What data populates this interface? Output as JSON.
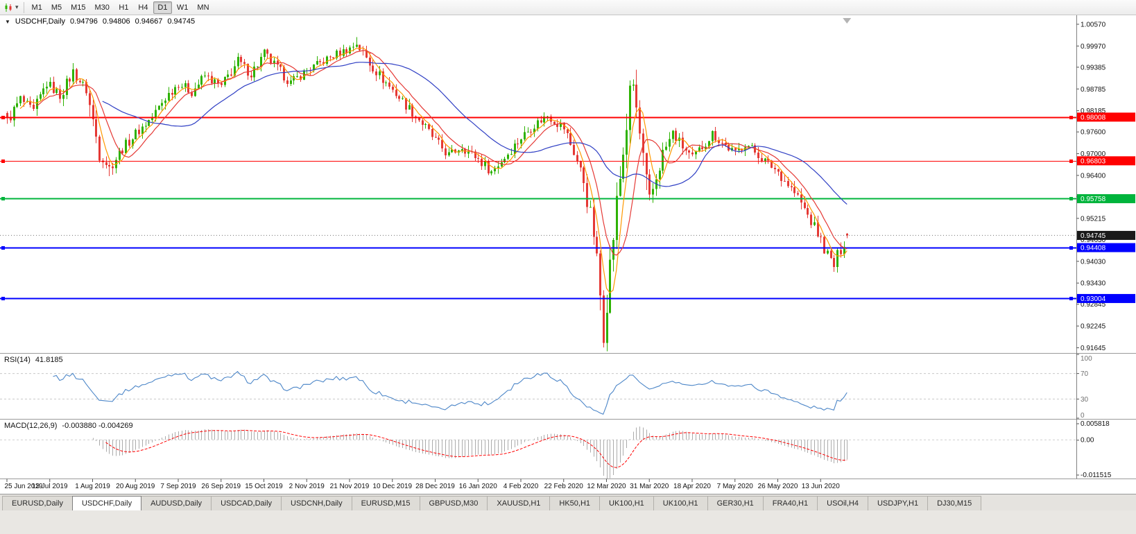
{
  "toolbar": {
    "dropdown_glyph": "▾",
    "timeframes": [
      {
        "label": "M1",
        "active": false
      },
      {
        "label": "M5",
        "active": false
      },
      {
        "label": "M15",
        "active": false
      },
      {
        "label": "M30",
        "active": false
      },
      {
        "label": "H1",
        "active": false
      },
      {
        "label": "H4",
        "active": false
      },
      {
        "label": "D1",
        "active": true
      },
      {
        "label": "W1",
        "active": false
      },
      {
        "label": "MN",
        "active": false
      }
    ]
  },
  "chart_header": {
    "collapse_arrow": "▼",
    "symbol": "USDCHF,Daily",
    "open": "0.94796",
    "high": "0.94806",
    "low": "0.94667",
    "close": "0.94745"
  },
  "chart_data": {
    "type": "candlestick",
    "symbol": "USDCHF",
    "period": "Daily",
    "bar_count": 256,
    "price_axis": {
      "ticks": [
        "1.00570",
        "0.99970",
        "0.99385",
        "0.98785",
        "0.98185",
        "0.97600",
        "0.97000",
        "0.96400",
        "0.95815",
        "0.95215",
        "0.94630",
        "0.94030",
        "0.93430",
        "0.92845",
        "0.92245",
        "0.91645"
      ],
      "top_price": 1.0078,
      "bottom_price": 0.9152
    },
    "x_axis_dates": [
      "25 Jun 2019",
      "13 Jul 2019",
      "1 Aug 2019",
      "20 Aug 2019",
      "7 Sep 2019",
      "26 Sep 2019",
      "15 Oct 2019",
      "2 Nov 2019",
      "21 Nov 2019",
      "10 Dec 2019",
      "28 Dec 2019",
      "16 Jan 2020",
      "4 Feb 2020",
      "22 Feb 2020",
      "12 Mar 2020",
      "31 Mar 2020",
      "18 Apr 2020",
      "7 May 2020",
      "26 May 2020",
      "13 Jun 2020"
    ],
    "date_bar_step": 13,
    "h_lines": [
      {
        "price": 0.98008,
        "label": "0.98008",
        "color": "#FF0000",
        "width": 2
      },
      {
        "price": 0.96803,
        "label": "0.96803",
        "color": "#FF0000",
        "width": 1
      },
      {
        "price": 0.95758,
        "label": "0.95758",
        "color": "#00B43C",
        "width": 2
      },
      {
        "price": 0.94408,
        "label": "0.94408",
        "color": "#0000FF",
        "width": 2
      },
      {
        "price": 0.93004,
        "label": "0.93004",
        "color": "#0000FF",
        "width": 2
      }
    ],
    "current_price": {
      "value": 0.94745,
      "label": "0.94745",
      "box_color": "#1a1a1a"
    },
    "colors": {
      "up": "#2DB200",
      "down": "#E53935",
      "bg": "#FFFFFF"
    },
    "moving_averages": [
      {
        "period": 5,
        "color": "#FF9800"
      },
      {
        "period": 10,
        "color": "#E53935"
      },
      {
        "period": 30,
        "color": "#2F3FC4"
      }
    ],
    "close_path": [
      [
        0,
        0.979
      ],
      [
        4,
        0.985
      ],
      [
        8,
        0.9815
      ],
      [
        12,
        0.9895
      ],
      [
        16,
        0.986
      ],
      [
        20,
        0.9925
      ],
      [
        24,
        0.9875
      ],
      [
        28,
        0.9705
      ],
      [
        31,
        0.966
      ],
      [
        35,
        0.9715
      ],
      [
        39,
        0.9755
      ],
      [
        44,
        0.98
      ],
      [
        48,
        0.9855
      ],
      [
        52,
        0.9895
      ],
      [
        56,
        0.987
      ],
      [
        60,
        0.9915
      ],
      [
        65,
        0.9885
      ],
      [
        70,
        0.9955
      ],
      [
        74,
        0.992
      ],
      [
        78,
        0.9975
      ],
      [
        82,
        0.9935
      ],
      [
        86,
        0.9895
      ],
      [
        91,
        0.993
      ],
      [
        96,
        0.9955
      ],
      [
        100,
        0.9975
      ],
      [
        104,
        0.999
      ],
      [
        106,
        1.0005
      ],
      [
        110,
        0.995
      ],
      [
        114,
        0.9905
      ],
      [
        117,
        0.9875
      ],
      [
        121,
        0.9835
      ],
      [
        125,
        0.9795
      ],
      [
        130,
        0.9735
      ],
      [
        134,
        0.9695
      ],
      [
        138,
        0.972
      ],
      [
        143,
        0.9685
      ],
      [
        147,
        0.965
      ],
      [
        151,
        0.969
      ],
      [
        156,
        0.9745
      ],
      [
        160,
        0.978
      ],
      [
        164,
        0.9805
      ],
      [
        169,
        0.977
      ],
      [
        172,
        0.9705
      ],
      [
        175,
        0.9625
      ],
      [
        178,
        0.948
      ],
      [
        180,
        0.931
      ],
      [
        181,
        0.9215
      ],
      [
        183,
        0.939
      ],
      [
        185,
        0.956
      ],
      [
        187,
        0.9705
      ],
      [
        189,
        0.9855
      ],
      [
        190,
        0.989
      ],
      [
        192,
        0.975
      ],
      [
        194,
        0.961
      ],
      [
        195,
        0.9565
      ],
      [
        197,
        0.9635
      ],
      [
        199,
        0.97
      ],
      [
        202,
        0.9755
      ],
      [
        205,
        0.972
      ],
      [
        208,
        0.9685
      ],
      [
        211,
        0.972
      ],
      [
        214,
        0.9755
      ],
      [
        217,
        0.973
      ],
      [
        221,
        0.97
      ],
      [
        224,
        0.973
      ],
      [
        227,
        0.9705
      ],
      [
        230,
        0.968
      ],
      [
        234,
        0.965
      ],
      [
        237,
        0.9615
      ],
      [
        240,
        0.958
      ],
      [
        243,
        0.953
      ],
      [
        246,
        0.948
      ],
      [
        249,
        0.942
      ],
      [
        251,
        0.939
      ],
      [
        253,
        0.944
      ],
      [
        255,
        0.94745
      ]
    ],
    "overrides": [
      {
        "i": 31,
        "l": 0.9638
      },
      {
        "i": 106,
        "h": 1.0022
      },
      {
        "i": 147,
        "l": 0.964
      },
      {
        "i": 181,
        "l": 0.9165
      },
      {
        "i": 190,
        "h": 0.9905
      },
      {
        "i": 251,
        "l": 0.9374
      },
      {
        "i": 255,
        "o": 0.94796,
        "h": 0.94806,
        "l": 0.94667,
        "c": 0.94745
      }
    ],
    "rsi": {
      "label": "RSI(14)",
      "value": "41.8185",
      "period": 14,
      "levels": [
        70,
        30
      ],
      "scale": [
        "100",
        "70",
        "30",
        "0"
      ],
      "color": "#4C86C8"
    },
    "macd": {
      "label": "MACD(12,26,9)",
      "value": "-0.003880 -0.004269",
      "fast": 12,
      "slow": 26,
      "signal": 9,
      "scale_top": "0.005818",
      "scale_zero": "0.00",
      "scale_bottom": "-0.011515",
      "range_top": 0.005818,
      "range_bottom": -0.011515,
      "hist_color": "#ABABAB",
      "signal_color": "#FF0000"
    }
  },
  "tabs": [
    {
      "label": "EURUSD,Daily",
      "active": false
    },
    {
      "label": "USDCHF,Daily",
      "active": true
    },
    {
      "label": "AUDUSD,Daily",
      "active": false
    },
    {
      "label": "USDCAD,Daily",
      "active": false
    },
    {
      "label": "USDCNH,Daily",
      "active": false
    },
    {
      "label": "EURUSD,M15",
      "active": false
    },
    {
      "label": "GBPUSD,M30",
      "active": false
    },
    {
      "label": "XAUUSD,H1",
      "active": false
    },
    {
      "label": "HK50,H1",
      "active": false
    },
    {
      "label": "UK100,H1",
      "active": false
    },
    {
      "label": "UK100,H1",
      "active": false
    },
    {
      "label": "GER30,H1",
      "active": false
    },
    {
      "label": "FRA40,H1",
      "active": false
    },
    {
      "label": "USOil,H4",
      "active": false
    },
    {
      "label": "USDJPY,H1",
      "active": false
    },
    {
      "label": "DJ30,M15",
      "active": false
    }
  ]
}
